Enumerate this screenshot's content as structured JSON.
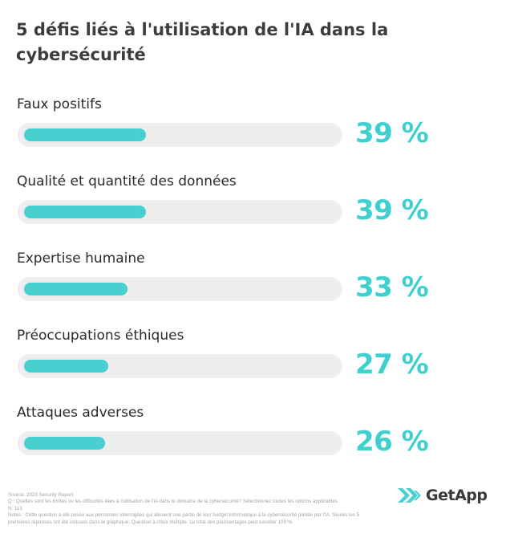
{
  "chart_data": {
    "type": "bar",
    "orientation": "horizontal",
    "title": "5 défis liés à l'utilisation de l'IA dans la cybersécurité",
    "categories": [
      "Faux positifs",
      "Qualité et quantité des données",
      "Expertise humaine",
      "Préoccupations éthiques",
      "Attaques adverses"
    ],
    "values": [
      39,
      39,
      33,
      27,
      26
    ],
    "value_labels": [
      "39 %",
      "39 %",
      "33 %",
      "27 %",
      "26 %"
    ],
    "xlim": [
      0,
      100
    ],
    "grid": false,
    "colors": {
      "bar": "#48cfd0",
      "track": "#eeeeee",
      "value_text": "#3ecfcf"
    }
  },
  "footnote": {
    "source": "Source: 2023 Security Report",
    "question": "Q : Quelles sont les limites ou les difficultés liées à l'utilisation de l'IA dans le domaine de la cybersécurité? Sélectionnez toutes les options applicables.",
    "n": "N: 113",
    "notes": "Notes : Cette question a été posée aux personnes interrogées qui allouent une partie de leur budget informatique à la cybersécurité pilotée par l'IA. Seules les 5 premières réponses ont été incluses dans le graphique. Question à choix multiple. Le total des pourcentages peut excéder 100 %."
  },
  "brand": {
    "logo_text": "GetApp",
    "logo_icon": "getapp-chevrons-icon",
    "accent": "#3ecfcf"
  }
}
